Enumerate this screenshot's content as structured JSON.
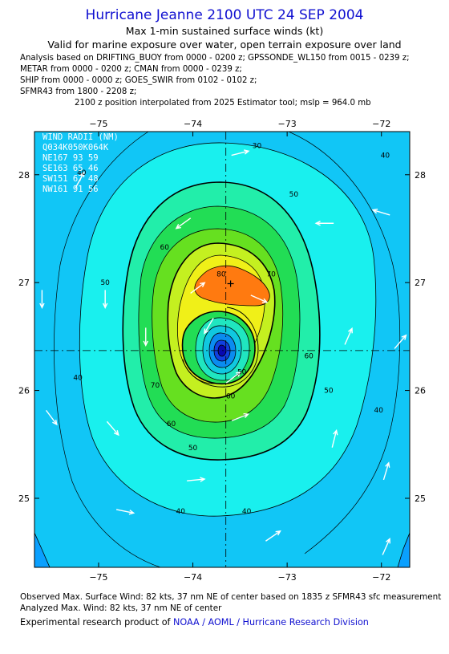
{
  "title": "Hurricane Jeanne 2100 UTC 24 SEP 2004",
  "subtitle": "Max 1-min sustained surface winds (kt)",
  "subtitle2": "Valid for marine exposure over water, open terrain exposure over land",
  "analysis_lines": [
    "Analysis based on  DRIFTING_BUOY from 0000 - 0200 z;  GPSSONDE_WL150 from 0015 - 0239 z;",
    "METAR from 0000 - 0200 z;  CMAN from 0000 - 0239 z;",
    "SHIP from 0000 - 0000 z;  GOES_SWIR from 0102 - 0102 z;",
    "SFMR43 from 1800 - 2208 z;"
  ],
  "position_note": "2100 z position interpolated from 2025 Estimator tool; mslp = 964.0 mb",
  "wind_radii": {
    "title": "WIND RADII (NM)",
    "header": "Q034K050K064K",
    "rows": [
      "NE167 93 59",
      "SE163 65 46",
      "SW151 67 48",
      "NW161 91 56"
    ]
  },
  "footer": {
    "observed": "Observed Max. Surface Wind: 82 kts, 37 nm NE of center based on 1835 z SFMR43 sfc measurement",
    "analyzed": "Analyzed Max. Wind: 82 kts, 37 nm NE of center",
    "credit_prefix": "Experimental research product of ",
    "credit_org": "NOAA / AOML / Hurricane Research Division"
  },
  "chart_data": {
    "type": "contour",
    "x_ticks": [
      -75,
      -74,
      -73,
      -72
    ],
    "x_tick_labels": [
      "−75",
      "−74",
      "−73",
      "−72"
    ],
    "y_ticks": [
      25,
      26,
      27,
      28
    ],
    "y_tick_labels": [
      "25",
      "26",
      "27",
      "28"
    ],
    "xlim": [
      -75.68,
      -71.7
    ],
    "ylim": [
      24.36,
      28.4
    ],
    "center": {
      "lon": -73.65,
      "lat": 26.37
    },
    "max_wind_location": {
      "lon": -73.6,
      "lat": 26.99
    },
    "contour_levels": [
      30,
      40,
      50,
      60,
      70,
      80
    ],
    "contour_labels": [
      {
        "text": "40",
        "lon": -75.18,
        "lat": 28.02
      },
      {
        "text": "40",
        "lon": -75.22,
        "lat": 26.12
      },
      {
        "text": "40",
        "lon": -74.13,
        "lat": 24.88
      },
      {
        "text": "40",
        "lon": -73.43,
        "lat": 24.88
      },
      {
        "text": "40",
        "lon": -72.03,
        "lat": 25.82
      },
      {
        "text": "40",
        "lon": -71.96,
        "lat": 28.18
      },
      {
        "text": "50",
        "lon": -74.93,
        "lat": 27.0
      },
      {
        "text": "50",
        "lon": -72.93,
        "lat": 27.82
      },
      {
        "text": "50",
        "lon": -72.56,
        "lat": 26.0
      },
      {
        "text": "50",
        "lon": -74.0,
        "lat": 25.47
      },
      {
        "text": "60",
        "lon": -74.3,
        "lat": 27.33
      },
      {
        "text": "60",
        "lon": -72.77,
        "lat": 26.32
      },
      {
        "text": "60",
        "lon": -74.23,
        "lat": 25.69
      },
      {
        "text": "60",
        "lon": -73.6,
        "lat": 25.95
      },
      {
        "text": "70",
        "lon": -73.17,
        "lat": 27.08
      },
      {
        "text": "70",
        "lon": -74.4,
        "lat": 26.05
      },
      {
        "text": "80",
        "lon": -73.7,
        "lat": 27.08
      },
      {
        "text": "50",
        "lon": -73.48,
        "lat": 26.17
      },
      {
        "text": "30",
        "lon": -73.32,
        "lat": 28.27
      }
    ],
    "wind_vectors": [
      {
        "lon": -73.5,
        "lat": 28.2,
        "u": 1,
        "v": 0.25
      },
      {
        "lon": -74.1,
        "lat": 27.55,
        "u": -0.7,
        "v": -0.5
      },
      {
        "lon": -72.6,
        "lat": 27.55,
        "u": -1,
        "v": 0.0
      },
      {
        "lon": -72.0,
        "lat": 27.65,
        "u": -1,
        "v": 0.3
      },
      {
        "lon": -75.2,
        "lat": 27.95,
        "u": 0.5,
        "v": 0.9
      },
      {
        "lon": -75.6,
        "lat": 26.85,
        "u": 0,
        "v": -1
      },
      {
        "lon": -74.93,
        "lat": 26.85,
        "u": 0,
        "v": -1
      },
      {
        "lon": -74.5,
        "lat": 26.5,
        "u": 0,
        "v": -0.9
      },
      {
        "lon": -73.95,
        "lat": 26.95,
        "u": 0.8,
        "v": 0.6
      },
      {
        "lon": -73.3,
        "lat": 26.85,
        "u": 0.9,
        "v": -0.4
      },
      {
        "lon": -72.35,
        "lat": 26.5,
        "u": 0.4,
        "v": 0.9
      },
      {
        "lon": -71.8,
        "lat": 26.45,
        "u": 0.6,
        "v": 0.7
      },
      {
        "lon": -75.5,
        "lat": 25.75,
        "u": 0.6,
        "v": -0.8
      },
      {
        "lon": -74.85,
        "lat": 25.65,
        "u": 0.6,
        "v": -0.7
      },
      {
        "lon": -73.5,
        "lat": 25.75,
        "u": 1,
        "v": 0.4
      },
      {
        "lon": -72.5,
        "lat": 25.55,
        "u": 0.25,
        "v": 1
      },
      {
        "lon": -71.95,
        "lat": 25.25,
        "u": 0.3,
        "v": 1
      },
      {
        "lon": -73.97,
        "lat": 25.17,
        "u": 1,
        "v": 0.1
      },
      {
        "lon": -74.72,
        "lat": 24.88,
        "u": 1,
        "v": -0.2
      },
      {
        "lon": -73.15,
        "lat": 24.65,
        "u": 0.8,
        "v": 0.55
      },
      {
        "lon": -71.95,
        "lat": 24.55,
        "u": 0.4,
        "v": 0.9
      },
      {
        "lon": -73.57,
        "lat": 26.12,
        "u": 0.8,
        "v": 0.6
      },
      {
        "lon": -73.83,
        "lat": 26.6,
        "u": -0.5,
        "v": -0.85
      }
    ],
    "colors": {
      "lt20": "#0aa0ff",
      "w30": "#11c6f6",
      "w40": "#19f0ee",
      "w50": "#22eeaa",
      "w60": "#22dd55",
      "w60b": "#66e020",
      "w70": "#c4f020",
      "w70b": "#f0f018",
      "w80": "#ff7a10",
      "eye1": "#20e6c0",
      "eye2": "#10c8e0",
      "eye3": "#0a8cf0",
      "eye4": "#1040e0",
      "eye5": "#0808b0"
    }
  }
}
